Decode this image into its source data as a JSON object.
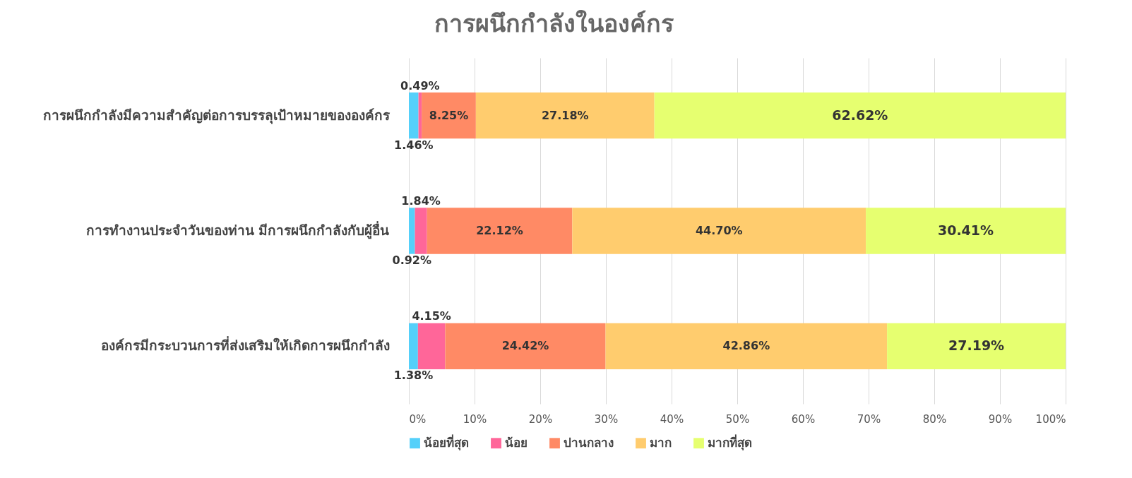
{
  "chart_data": {
    "type": "bar",
    "orientation": "horizontal",
    "stacked": true,
    "title": "การผนึกกำลังในองค์กร",
    "categories": [
      "การผนึกกำลังมีความสำคัญต่อการบรรลุเป้าหมายขององค์กร",
      "การทำงานประจำวันของท่าน มีการผนึกกำลังกับผู้อื่น",
      "องค์กรมีกระบวนการที่ส่งเสริมให้เกิดการผนึกกำลัง"
    ],
    "series": [
      {
        "name": "น้อยที่สุด",
        "color": "#55d0fa",
        "values": [
          1.46,
          0.92,
          1.38
        ],
        "value_labels": [
          "1.46%",
          "0.92%",
          "1.38%"
        ]
      },
      {
        "name": "น้อย",
        "color": "#ff6699",
        "values": [
          0.49,
          1.84,
          4.15
        ],
        "value_labels": [
          "0.49%",
          "1.84%",
          "4.15%"
        ]
      },
      {
        "name": "ปานกลาง",
        "color": "#ff8a65",
        "values": [
          8.25,
          22.12,
          24.42
        ],
        "value_labels": [
          "8.25%",
          "22.12%",
          "24.42%"
        ]
      },
      {
        "name": "มาก",
        "color": "#ffcc6e",
        "values": [
          27.18,
          44.7,
          42.86
        ],
        "value_labels": [
          "27.18%",
          "44.70%",
          "42.86%"
        ]
      },
      {
        "name": "มากที่สุด",
        "color": "#e6ff70",
        "values": [
          62.62,
          30.41,
          27.19
        ],
        "value_labels": [
          "62.62%",
          "30.41%",
          "27.19%"
        ]
      }
    ],
    "xlim": [
      0,
      100
    ],
    "xticks": [
      {
        "value": 0,
        "label": "0%"
      },
      {
        "value": 10,
        "label": "10%"
      },
      {
        "value": 20,
        "label": "20%"
      },
      {
        "value": 30,
        "label": "30%"
      },
      {
        "value": 40,
        "label": "40%"
      },
      {
        "value": 50,
        "label": "50%"
      },
      {
        "value": 60,
        "label": "60%"
      },
      {
        "value": 70,
        "label": "70%"
      },
      {
        "value": 80,
        "label": "80%"
      },
      {
        "value": 90,
        "label": "90%"
      },
      {
        "value": 100,
        "label": "100%"
      }
    ],
    "grid": "x",
    "legend": "bottom"
  }
}
